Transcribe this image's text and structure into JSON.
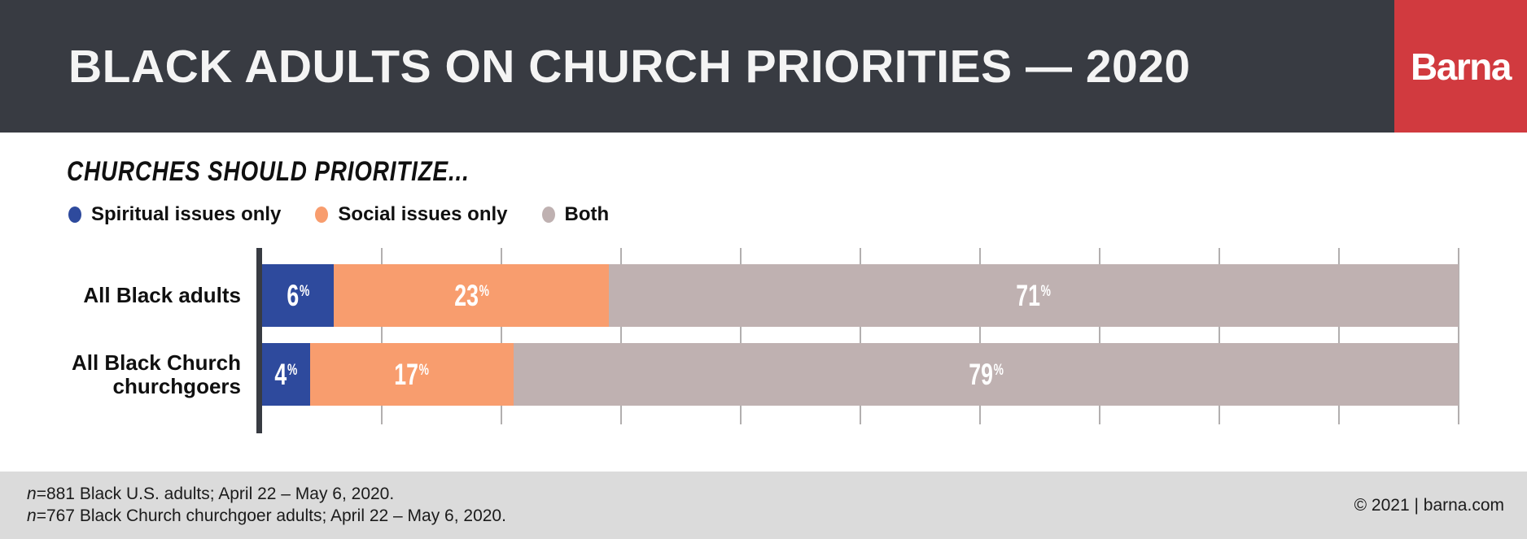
{
  "header": {
    "title": "BLACK ADULTS ON CHURCH PRIORITIES — 2020",
    "logo": "Barna",
    "background_color": "#383b42",
    "logo_background_color": "#d13a3f"
  },
  "subtitle": "CHURCHES SHOULD PRIORITIZE...",
  "chart_data": {
    "type": "bar",
    "stacked": true,
    "orientation": "horizontal",
    "categories": [
      "All Black adults",
      "All Black Church churchgoers"
    ],
    "series": [
      {
        "name": "Spiritual issues only",
        "color": "#2e4a9d",
        "values": [
          6,
          4
        ]
      },
      {
        "name": "Social issues only",
        "color": "#f89d6e",
        "values": [
          23,
          17
        ]
      },
      {
        "name": "Both",
        "color": "#bfb1b1",
        "values": [
          71,
          79
        ]
      }
    ],
    "value_suffix": "%",
    "xlim": [
      0,
      100
    ],
    "gridlines_every": 10,
    "grid_on": true,
    "legend_position": "top-left",
    "axis_color": "#383b42",
    "gridline_color": "#b2afaf"
  },
  "footer": {
    "footnotes": [
      {
        "prefix": "n",
        "text": "=881 Black U.S. adults; April 22 – May 6, 2020."
      },
      {
        "prefix": "n",
        "text": "=767 Black Church churchgoer adults; April 22 – May 6, 2020."
      }
    ],
    "copyright": "© 2021 | barna.com"
  }
}
